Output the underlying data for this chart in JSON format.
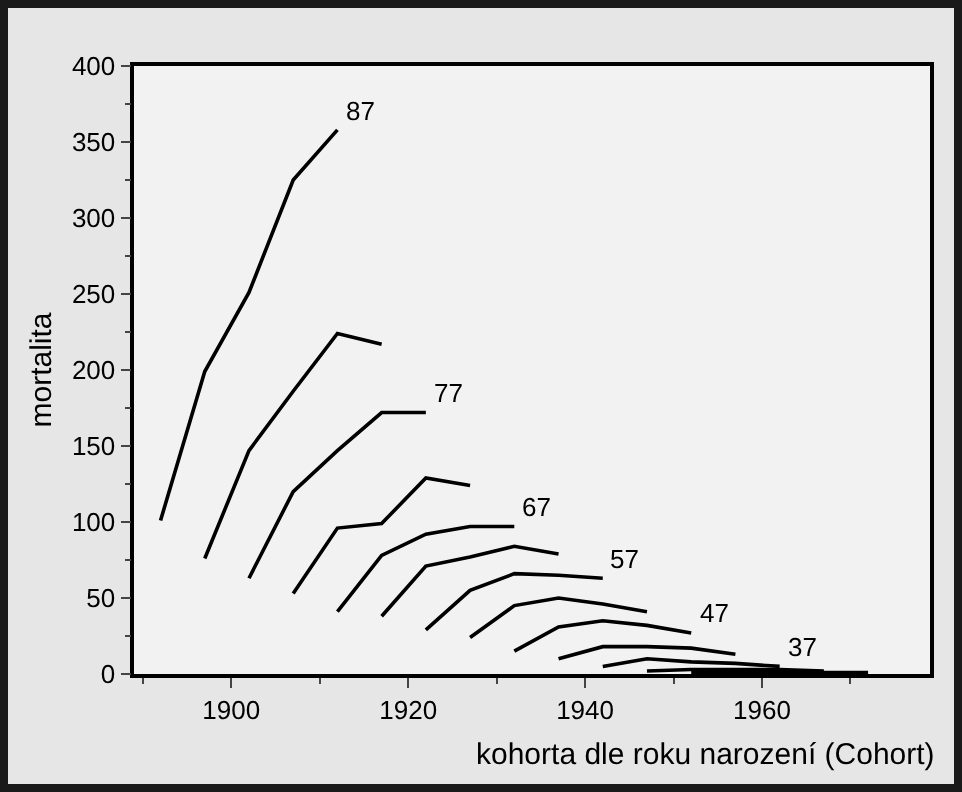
{
  "chart_data": {
    "type": "line",
    "xlabel": "kohorta dle roku narození (Cohort)",
    "ylabel": "mortalita",
    "xlim": [
      1889,
      1979
    ],
    "xticks": [
      1900,
      1920,
      1940,
      1960
    ],
    "ylim": [
      0,
      400
    ],
    "yticks": [
      0,
      50,
      100,
      150,
      200,
      250,
      300,
      350,
      400
    ],
    "grid": false,
    "legend": false,
    "marker": "none",
    "line_style": "solid",
    "series": [
      {
        "name": "87",
        "color": "#000000",
        "x": [
          1892,
          1897,
          1902,
          1907,
          1912
        ],
        "values": [
          101,
          199,
          251,
          325,
          358
        ]
      },
      {
        "color": "#000000",
        "x": [
          1897,
          1902,
          1907,
          1912,
          1917
        ],
        "values": [
          76,
          147,
          186,
          224,
          217
        ]
      },
      {
        "name": "77",
        "color": "#000000",
        "x": [
          1902,
          1907,
          1912,
          1917,
          1922
        ],
        "values": [
          63,
          120,
          147,
          172,
          172
        ]
      },
      {
        "color": "#000000",
        "x": [
          1907,
          1912,
          1917,
          1922,
          1927
        ],
        "values": [
          53,
          96,
          99,
          129,
          124
        ]
      },
      {
        "name": "67",
        "color": "#000000",
        "x": [
          1912,
          1917,
          1922,
          1927,
          1932
        ],
        "values": [
          41,
          78,
          92,
          97,
          97
        ]
      },
      {
        "color": "#000000",
        "x": [
          1917,
          1922,
          1927,
          1932,
          1937
        ],
        "values": [
          38,
          71,
          77,
          84,
          79
        ]
      },
      {
        "name": "57",
        "color": "#000000",
        "x": [
          1922,
          1927,
          1932,
          1937,
          1942
        ],
        "values": [
          29,
          55,
          66,
          65,
          63
        ]
      },
      {
        "color": "#000000",
        "x": [
          1927,
          1932,
          1937,
          1942,
          1947
        ],
        "values": [
          24,
          45,
          50,
          46,
          41
        ]
      },
      {
        "name": "47",
        "color": "#000000",
        "x": [
          1932,
          1937,
          1942,
          1947,
          1952
        ],
        "values": [
          15,
          31,
          35,
          32,
          27
        ]
      },
      {
        "color": "#000000",
        "x": [
          1937,
          1942,
          1947,
          1952,
          1957
        ],
        "values": [
          10,
          18,
          18,
          17,
          13
        ]
      },
      {
        "name": "37",
        "color": "#000000",
        "x": [
          1942,
          1947,
          1952,
          1957,
          1962
        ],
        "values": [
          5,
          10,
          8,
          7,
          5
        ]
      },
      {
        "color": "#000000",
        "x": [
          1947,
          1952,
          1957,
          1962,
          1967
        ],
        "values": [
          2,
          3,
          3,
          3,
          2
        ]
      },
      {
        "color": "#000000",
        "x": [
          1952,
          1957,
          1962,
          1967,
          1972
        ],
        "values": [
          1,
          1,
          1,
          1,
          1
        ]
      }
    ]
  }
}
